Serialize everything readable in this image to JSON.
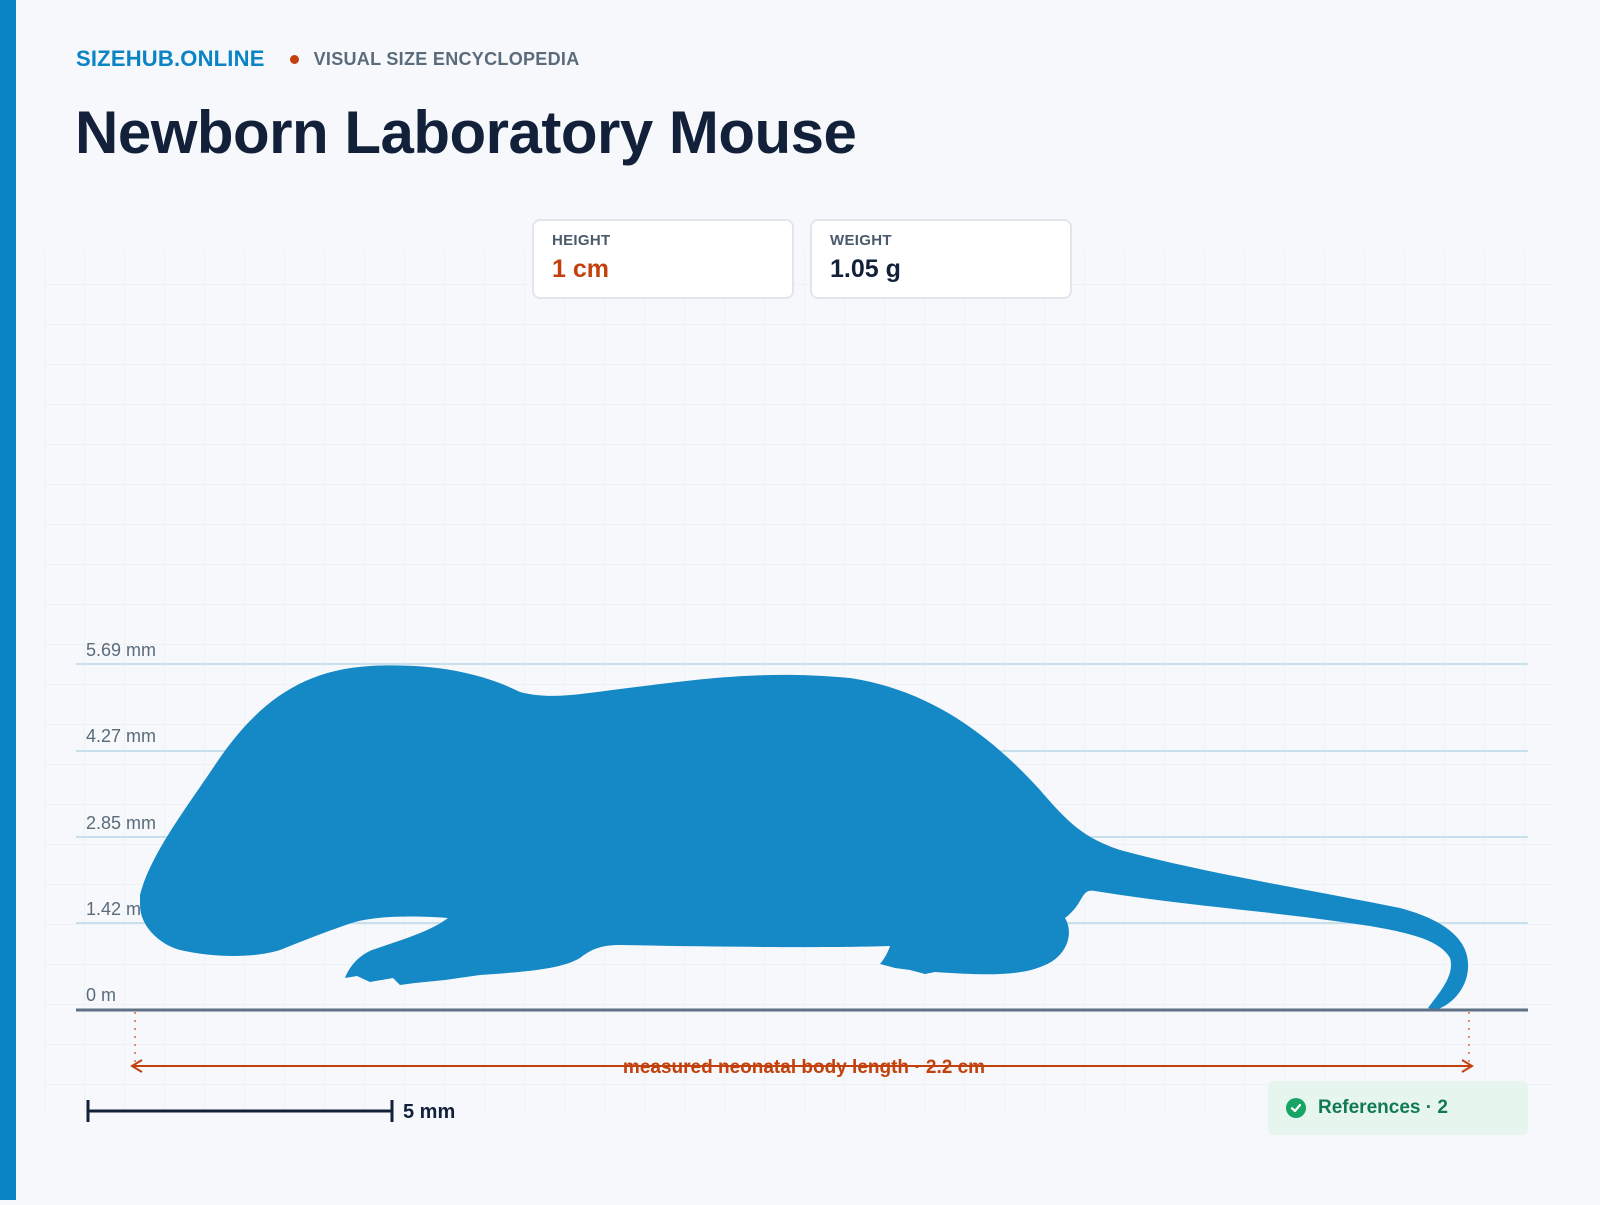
{
  "header": {
    "brand": "SIZEHUB.ONLINE",
    "tagline": "VISUAL SIZE ENCYCLOPEDIA"
  },
  "title": "Newborn Laboratory Mouse",
  "stats": {
    "height": {
      "label": "HEIGHT",
      "value": "1 cm"
    },
    "weight": {
      "label": "WEIGHT",
      "value": "1.05 g"
    }
  },
  "ruler": {
    "ticks": [
      "0 m",
      "1.42 mm",
      "2.85 mm",
      "4.27 mm",
      "5.69 mm"
    ]
  },
  "measurement": {
    "label": "measured neonatal body length · 2.2 cm"
  },
  "scale_bar": {
    "label": "5 mm"
  },
  "references": {
    "label": "References · 2"
  },
  "colors": {
    "accent": "#0b84c6",
    "silhouette": "#1588c6",
    "measure": "#c2410c",
    "title": "#13203a",
    "references_bg": "#e6f6ef",
    "references_text": "#127a52"
  },
  "icons": {
    "references": "check-circle-icon"
  }
}
